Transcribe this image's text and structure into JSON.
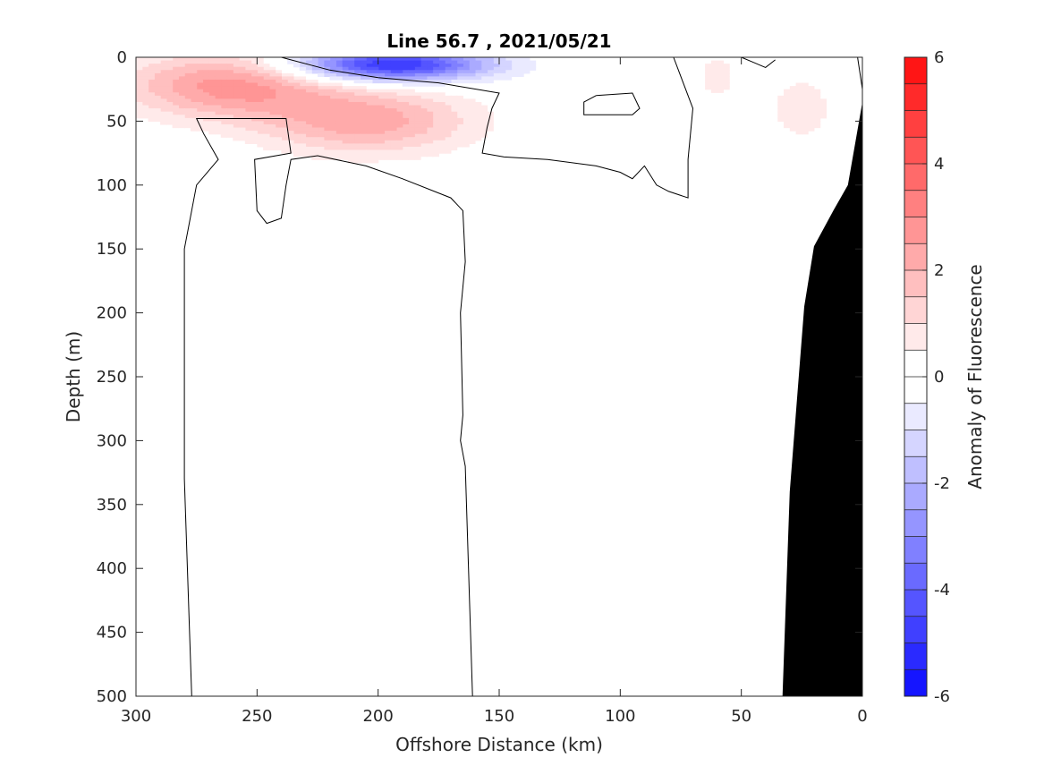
{
  "chart_data": {
    "type": "contour",
    "title": "Line 56.7 , 2021/05/21",
    "xlabel": "Offshore Distance (km)",
    "ylabel": "Depth (m)",
    "colorbar_label": "Anomaly of Fluorescence",
    "xlim": [
      300,
      0
    ],
    "ylim": [
      500,
      0
    ],
    "x_ticks": [
      "300",
      "250",
      "200",
      "150",
      "100",
      "50",
      "0"
    ],
    "y_ticks": [
      "0",
      "50",
      "100",
      "150",
      "200",
      "250",
      "300",
      "350",
      "400",
      "450",
      "500"
    ],
    "colorbar_ticks": [
      "6",
      "4",
      "2",
      "0",
      "-2",
      "-4",
      "-6"
    ],
    "clim": [
      -6,
      6
    ],
    "contour_step": 0.5,
    "colormap": "blue-white-red",
    "colors": {
      "positive": "#ff0000",
      "negative": "#0000ff",
      "zero": "#ffffff",
      "bottom": "#000000"
    },
    "anomalies": [
      {
        "name": "positive",
        "center_km": 262,
        "center_depth_m": 22,
        "peak": 2.7
      },
      {
        "name": "positive",
        "center_km": 205,
        "center_depth_m": 50,
        "peak": 2.3
      },
      {
        "name": "negative",
        "center_km": 195,
        "center_depth_m": 6,
        "peak": -5.2
      },
      {
        "name": "positive",
        "center_km": 25,
        "center_depth_m": 40,
        "peak": 0.8
      },
      {
        "name": "positive",
        "center_km": 60,
        "center_depth_m": 15,
        "peak": 0.6
      }
    ],
    "bottom_profile": [
      [
        33,
        500
      ],
      [
        30,
        340
      ],
      [
        24,
        195
      ],
      [
        20,
        148
      ],
      [
        12,
        120
      ],
      [
        6,
        100
      ],
      [
        0,
        35
      ]
    ],
    "zero_contour_lines": [
      [
        [
          277,
          500
        ],
        [
          280,
          330
        ],
        [
          280,
          150
        ],
        [
          275,
          100
        ],
        [
          266,
          80
        ],
        [
          272,
          60
        ],
        [
          275,
          48
        ],
        [
          238,
          48
        ],
        [
          236,
          75
        ],
        [
          251,
          80
        ],
        [
          250,
          120
        ],
        [
          246,
          130
        ],
        [
          240,
          126
        ],
        [
          238,
          100
        ],
        [
          236,
          80
        ],
        [
          225,
          77
        ],
        [
          205,
          85
        ],
        [
          190,
          95
        ],
        [
          170,
          110
        ],
        [
          165,
          120
        ],
        [
          164,
          160
        ],
        [
          166,
          200
        ],
        [
          165,
          280
        ],
        [
          166,
          300
        ],
        [
          164,
          320
        ],
        [
          161,
          500
        ]
      ],
      [
        [
          240,
          0
        ],
        [
          220,
          10
        ],
        [
          200,
          16
        ],
        [
          175,
          20
        ],
        [
          150,
          28
        ],
        [
          153,
          40
        ],
        [
          155,
          55
        ],
        [
          157,
          75
        ],
        [
          148,
          78
        ],
        [
          130,
          80
        ],
        [
          110,
          85
        ],
        [
          100,
          90
        ],
        [
          95,
          95
        ],
        [
          90,
          85
        ],
        [
          85,
          100
        ],
        [
          80,
          105
        ],
        [
          72,
          110
        ],
        [
          72,
          80
        ],
        [
          70,
          40
        ],
        [
          78,
          0
        ]
      ],
      [
        [
          110,
          30
        ],
        [
          95,
          28
        ],
        [
          92,
          40
        ],
        [
          95,
          45
        ],
        [
          115,
          45
        ],
        [
          115,
          35
        ],
        [
          110,
          30
        ]
      ],
      [
        [
          50,
          0
        ],
        [
          45,
          4
        ],
        [
          40,
          8
        ],
        [
          36,
          2
        ]
      ],
      [
        [
          2,
          0
        ],
        [
          0,
          25
        ]
      ]
    ]
  }
}
